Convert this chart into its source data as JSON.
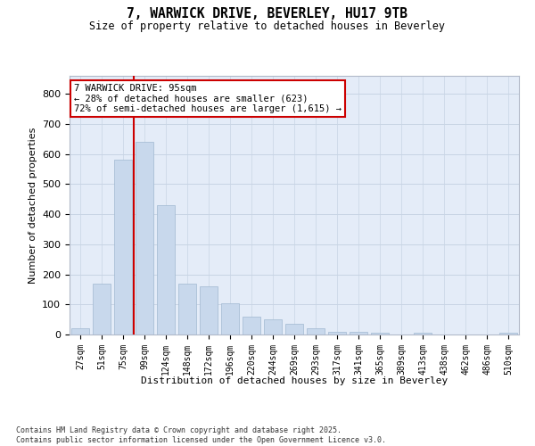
{
  "title_line1": "7, WARWICK DRIVE, BEVERLEY, HU17 9TB",
  "title_line2": "Size of property relative to detached houses in Beverley",
  "xlabel": "Distribution of detached houses by size in Beverley",
  "ylabel": "Number of detached properties",
  "categories": [
    "27sqm",
    "51sqm",
    "75sqm",
    "99sqm",
    "124sqm",
    "148sqm",
    "172sqm",
    "196sqm",
    "220sqm",
    "244sqm",
    "269sqm",
    "293sqm",
    "317sqm",
    "341sqm",
    "365sqm",
    "389sqm",
    "413sqm",
    "438sqm",
    "462sqm",
    "486sqm",
    "510sqm"
  ],
  "values": [
    20,
    170,
    580,
    640,
    430,
    170,
    160,
    105,
    60,
    50,
    35,
    20,
    10,
    10,
    5,
    0,
    5,
    0,
    0,
    0,
    5
  ],
  "bar_color": "#c8d8ec",
  "bar_edge_color": "#a0b8d0",
  "vline_color": "#cc0000",
  "annotation_text": "7 WARWICK DRIVE: 95sqm\n← 28% of detached houses are smaller (623)\n72% of semi-detached houses are larger (1,615) →",
  "annotation_box_facecolor": "#ffffff",
  "annotation_box_edgecolor": "#cc0000",
  "ylim": [
    0,
    860
  ],
  "yticks": [
    0,
    100,
    200,
    300,
    400,
    500,
    600,
    700,
    800
  ],
  "grid_color": "#c8d4e4",
  "plot_bg": "#e4ecf8",
  "fig_bg": "#ffffff",
  "footer_line1": "Contains HM Land Registry data © Crown copyright and database right 2025.",
  "footer_line2": "Contains public sector information licensed under the Open Government Licence v3.0."
}
